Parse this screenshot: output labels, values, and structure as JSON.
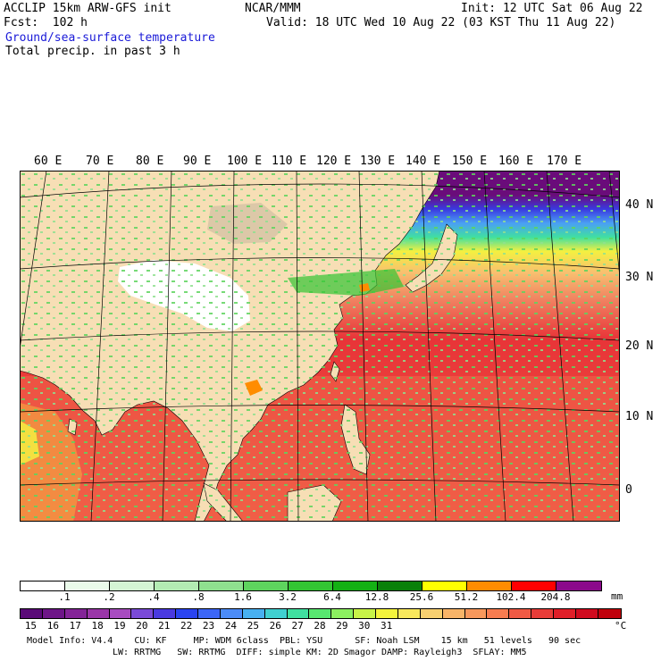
{
  "header": {
    "left_line1": "ACCLIP 15km ARW-GFS init",
    "left_line2": "Fcst:  102 h",
    "center_line1": "NCAR/MMM",
    "init": "Init: 12 UTC Sat 06 Aug 22",
    "valid": "Valid: 18 UTC Wed 10 Aug 22 (03 KST Thu 11 Aug 22)",
    "field1": "Ground/sea-surface temperature",
    "field2": "Total precip. in past 3 h"
  },
  "map": {
    "lon_labels": [
      "60 E",
      "70 E",
      "80 E",
      "90 E",
      "100 E",
      "110 E",
      "120 E",
      "130 E",
      "140 E",
      "150 E",
      "160 E",
      "170 E"
    ],
    "lat_labels": [
      "40 N",
      "30 N",
      "20 N",
      "10 N",
      "0"
    ]
  },
  "precip_bar": {
    "unit": "mm",
    "ticks": [
      ".1",
      ".2",
      ".4",
      ".8",
      "1.6",
      "3.2",
      "6.4",
      "12.8",
      "25.6",
      "51.2",
      "102.4",
      "204.8"
    ],
    "colors": [
      "#ffffff",
      "#eafaea",
      "#d4f5d4",
      "#b3ecb3",
      "#8fe08f",
      "#5ed45e",
      "#33c533",
      "#14b014",
      "#0a800a",
      "#ffff00",
      "#ff8c00",
      "#ff0000",
      "#8b0a8b"
    ]
  },
  "temp_bar": {
    "unit": "°C",
    "ticks": [
      "15",
      "16",
      "17",
      "18",
      "19",
      "20",
      "21",
      "22",
      "23",
      "24",
      "25",
      "26",
      "27",
      "28",
      "29",
      "30",
      "31"
    ],
    "colors": [
      "#5a0a78",
      "#6e1688",
      "#842498",
      "#9a36a8",
      "#a84cc0",
      "#7a4ad8",
      "#4a3ae0",
      "#2a44f0",
      "#3c66f8",
      "#4c8cf8",
      "#48b0f0",
      "#40d0d0",
      "#40e0a0",
      "#58e870",
      "#8cf060",
      "#c8f448",
      "#f4f43c",
      "#f8e85c",
      "#f8d070",
      "#f8b468",
      "#f8985c",
      "#f87c50",
      "#f05a44",
      "#e83c38",
      "#e01e28",
      "#d00a1e",
      "#c0000c"
    ]
  },
  "footer": {
    "line1": "Model Info: V4.4    CU: KF     MP: WDM 6class  PBL: YSU      SF: Noah LSM    15 km   51 levels   90 sec",
    "line2": "LW: RRTMG   SW: RRTMG  DIFF: simple KM: 2D Smagor DAMP: Rayleigh3  SFLAY: MM5"
  }
}
